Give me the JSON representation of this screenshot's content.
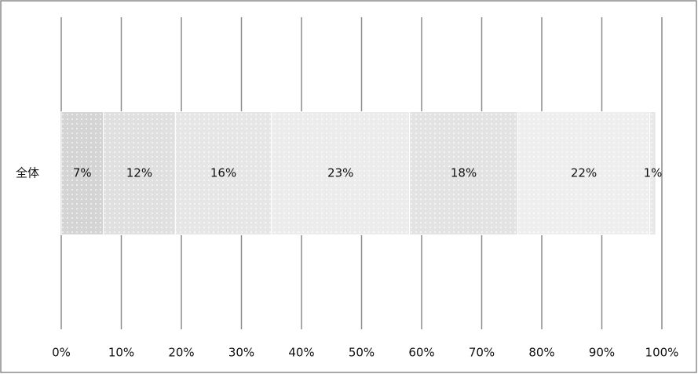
{
  "chart_data": {
    "type": "stacked-barh",
    "categories": [
      "全体"
    ],
    "series": [
      {
        "color": "#d4d4d4",
        "values": [
          7
        ],
        "value_labels": [
          "7%"
        ]
      },
      {
        "color": "#e0e0e0",
        "values": [
          12
        ],
        "value_labels": [
          "12%"
        ]
      },
      {
        "color": "#e6e6e6",
        "values": [
          16
        ],
        "value_labels": [
          "16%"
        ]
      },
      {
        "color": "#ececec",
        "values": [
          23
        ],
        "value_labels": [
          "23%"
        ]
      },
      {
        "color": "#e3e3e3",
        "values": [
          18
        ],
        "value_labels": [
          "18%"
        ]
      },
      {
        "color": "#eeeeee",
        "values": [
          22
        ],
        "value_labels": [
          "22%"
        ]
      },
      {
        "color": "#e8e8e8",
        "values": [
          1
        ],
        "value_labels": [
          "1%"
        ]
      }
    ],
    "xlim": [
      0,
      100
    ],
    "xticks": [
      {
        "value": 0,
        "label": "0%"
      },
      {
        "value": 10,
        "label": "10%"
      },
      {
        "value": 20,
        "label": "20%"
      },
      {
        "value": 30,
        "label": "30%"
      },
      {
        "value": 40,
        "label": "40%"
      },
      {
        "value": 50,
        "label": "50%"
      },
      {
        "value": 60,
        "label": "60%"
      },
      {
        "value": 70,
        "label": "70%"
      },
      {
        "value": 80,
        "label": "80%"
      },
      {
        "value": 90,
        "label": "90%"
      },
      {
        "value": 100,
        "label": "100%"
      }
    ],
    "grid": true
  }
}
